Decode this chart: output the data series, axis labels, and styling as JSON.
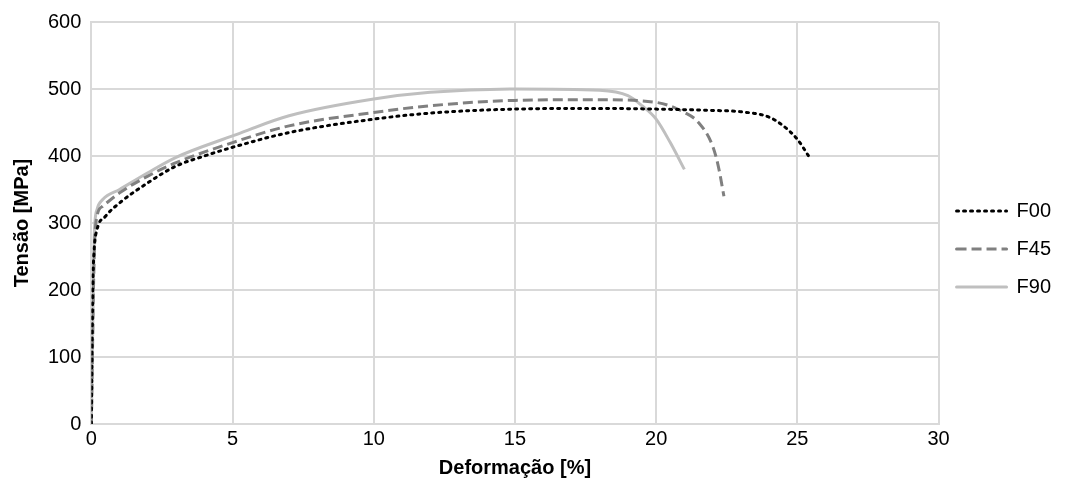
{
  "chart_data": {
    "type": "line",
    "xlabel": "Deformação [%]",
    "ylabel": "Tensão [MPa]",
    "xlim": [
      0,
      30
    ],
    "xticks": [
      0,
      5,
      10,
      15,
      20,
      25,
      30
    ],
    "ylim": [
      0,
      600
    ],
    "yticks": [
      0,
      100,
      200,
      300,
      400,
      500,
      600
    ],
    "grid": true,
    "legend": "right",
    "marker": "none",
    "series": [
      {
        "name": "F00",
        "color": "#000000",
        "line_style": "dotted",
        "x": [
          0,
          0.05,
          0.1,
          0.2,
          0.5,
          1,
          2,
          3,
          4,
          5,
          7,
          10,
          12,
          15,
          18,
          20,
          22,
          23,
          24,
          24.5,
          25,
          25.4
        ],
        "values": [
          0,
          200,
          260,
          290,
          310,
          330,
          360,
          385,
          400,
          413,
          435,
          455,
          464,
          470,
          471,
          470,
          468,
          466,
          458,
          445,
          425,
          400
        ]
      },
      {
        "name": "F45",
        "color": "#808080",
        "line_style": "dashed",
        "x": [
          0,
          0.1,
          0.2,
          0.4,
          1,
          2,
          3,
          5,
          7,
          10,
          12,
          15,
          18,
          20,
          21,
          21.5,
          22,
          22.2,
          22.4
        ],
        "values": [
          0,
          250,
          310,
          325,
          345,
          370,
          390,
          420,
          445,
          465,
          475,
          483,
          484,
          480,
          465,
          450,
          415,
          385,
          340
        ]
      },
      {
        "name": "F90",
        "color": "#bfbfbf",
        "line_style": "solid",
        "x": [
          0,
          0.1,
          0.2,
          0.4,
          1,
          2,
          3,
          5,
          7,
          10,
          12,
          15,
          18,
          19,
          19.5,
          20,
          20.5,
          21
        ],
        "values": [
          0,
          280,
          320,
          335,
          350,
          375,
          398,
          430,
          460,
          485,
          495,
          500,
          498,
          490,
          475,
          455,
          420,
          380
        ]
      }
    ]
  }
}
